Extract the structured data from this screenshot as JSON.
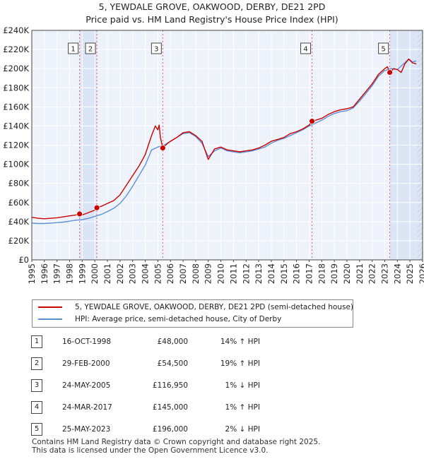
{
  "title_line1": "5, YEWDALE GROVE, OAKWOOD, DERBY, DE21 2PD",
  "title_line2": "Price paid vs. HM Land Registry's House Price Index (HPI)",
  "chart_data": {
    "type": "line",
    "xlim": [
      1995,
      2026
    ],
    "ylim": [
      0,
      240000
    ],
    "x_ticks": [
      "1995",
      "1996",
      "1997",
      "1998",
      "1999",
      "2000",
      "2001",
      "2002",
      "2003",
      "2004",
      "2005",
      "2006",
      "2007",
      "2008",
      "2009",
      "2010",
      "2011",
      "2012",
      "2013",
      "2014",
      "2015",
      "2016",
      "2017",
      "2018",
      "2019",
      "2020",
      "2021",
      "2022",
      "2023",
      "2024",
      "2025",
      "2026"
    ],
    "y_ticks": [
      {
        "value": 0,
        "label": "£0"
      },
      {
        "value": 20000,
        "label": "£20K"
      },
      {
        "value": 40000,
        "label": "£40K"
      },
      {
        "value": 60000,
        "label": "£60K"
      },
      {
        "value": 80000,
        "label": "£80K"
      },
      {
        "value": 100000,
        "label": "£100K"
      },
      {
        "value": 120000,
        "label": "£120K"
      },
      {
        "value": 140000,
        "label": "£140K"
      },
      {
        "value": 160000,
        "label": "£160K"
      },
      {
        "value": 180000,
        "label": "£180K"
      },
      {
        "value": 200000,
        "label": "£200K"
      },
      {
        "value": 220000,
        "label": "£220K"
      },
      {
        "value": 240000,
        "label": "£240K"
      }
    ],
    "grid": true,
    "shaded_ranges": [
      [
        1998.79,
        2000.16
      ],
      [
        2023.4,
        2026
      ]
    ],
    "hatched_from": 2025.6,
    "series": [
      {
        "name": "5, YEWDALE GROVE, OAKWOOD, DERBY, DE21 2PD (semi-detached house)",
        "color": "#cc0000",
        "points": [
          [
            1995,
            44500
          ],
          [
            1995.5,
            43500
          ],
          [
            1996,
            43000
          ],
          [
            1996.5,
            43500
          ],
          [
            1997,
            44000
          ],
          [
            1997.5,
            45000
          ],
          [
            1998,
            46000
          ],
          [
            1998.5,
            47000
          ],
          [
            1998.79,
            48000
          ],
          [
            1999,
            47000
          ],
          [
            1999.5,
            49500
          ],
          [
            2000,
            52000
          ],
          [
            2000.16,
            54500
          ],
          [
            2000.5,
            56000
          ],
          [
            2001,
            59000
          ],
          [
            2001.5,
            62000
          ],
          [
            2002,
            68000
          ],
          [
            2002.5,
            78000
          ],
          [
            2003,
            88000
          ],
          [
            2003.5,
            98000
          ],
          [
            2004,
            110000
          ],
          [
            2004.5,
            130000
          ],
          [
            2004.8,
            140000
          ],
          [
            2005,
            136000
          ],
          [
            2005.1,
            141000
          ],
          [
            2005.2,
            128000
          ],
          [
            2005.39,
            116950
          ],
          [
            2005.7,
            121000
          ],
          [
            2006,
            124000
          ],
          [
            2006.5,
            128000
          ],
          [
            2007,
            133000
          ],
          [
            2007.5,
            134000
          ],
          [
            2008,
            130000
          ],
          [
            2008.5,
            124000
          ],
          [
            2009,
            105000
          ],
          [
            2009.5,
            116000
          ],
          [
            2010,
            118000
          ],
          [
            2010.5,
            115000
          ],
          [
            2011,
            114000
          ],
          [
            2011.5,
            113000
          ],
          [
            2012,
            114000
          ],
          [
            2012.5,
            115000
          ],
          [
            2013,
            117000
          ],
          [
            2013.5,
            120000
          ],
          [
            2014,
            124000
          ],
          [
            2014.5,
            126000
          ],
          [
            2015,
            128000
          ],
          [
            2015.5,
            132000
          ],
          [
            2016,
            134000
          ],
          [
            2016.5,
            137000
          ],
          [
            2017,
            141000
          ],
          [
            2017.23,
            145000
          ],
          [
            2017.5,
            146000
          ],
          [
            2018,
            148000
          ],
          [
            2018.5,
            152000
          ],
          [
            2019,
            155000
          ],
          [
            2019.5,
            157000
          ],
          [
            2020,
            158000
          ],
          [
            2020.5,
            160000
          ],
          [
            2021,
            168000
          ],
          [
            2021.5,
            176000
          ],
          [
            2022,
            184000
          ],
          [
            2022.5,
            194000
          ],
          [
            2023,
            200000
          ],
          [
            2023.2,
            202000
          ],
          [
            2023.4,
            196000
          ],
          [
            2023.7,
            200000
          ],
          [
            2024,
            199000
          ],
          [
            2024.3,
            196000
          ],
          [
            2024.6,
            205000
          ],
          [
            2024.9,
            210000
          ],
          [
            2025.2,
            206000
          ],
          [
            2025.5,
            205000
          ]
        ]
      },
      {
        "name": "HPI: Average price, semi-detached house, City of Derby",
        "color": "#5b8fd6",
        "points": [
          [
            1995,
            38500
          ],
          [
            1995.5,
            38000
          ],
          [
            1996,
            38000
          ],
          [
            1996.5,
            38500
          ],
          [
            1997,
            39000
          ],
          [
            1997.5,
            39500
          ],
          [
            1998,
            40500
          ],
          [
            1998.5,
            41500
          ],
          [
            1999,
            42000
          ],
          [
            1999.5,
            43500
          ],
          [
            2000,
            45500
          ],
          [
            2000.5,
            47500
          ],
          [
            2001,
            50500
          ],
          [
            2001.5,
            54000
          ],
          [
            2002,
            59000
          ],
          [
            2002.5,
            67000
          ],
          [
            2003,
            77000
          ],
          [
            2003.5,
            88000
          ],
          [
            2004,
            99000
          ],
          [
            2004.5,
            115000
          ],
          [
            2005,
            118000
          ],
          [
            2005.5,
            120000
          ],
          [
            2006,
            124000
          ],
          [
            2006.5,
            128000
          ],
          [
            2007,
            132000
          ],
          [
            2007.5,
            133000
          ],
          [
            2008,
            129000
          ],
          [
            2008.5,
            122000
          ],
          [
            2009,
            108000
          ],
          [
            2009.5,
            114000
          ],
          [
            2010,
            117000
          ],
          [
            2010.5,
            114000
          ],
          [
            2011,
            113000
          ],
          [
            2011.5,
            112000
          ],
          [
            2012,
            113000
          ],
          [
            2012.5,
            114000
          ],
          [
            2013,
            116000
          ],
          [
            2013.5,
            118000
          ],
          [
            2014,
            122000
          ],
          [
            2014.5,
            125000
          ],
          [
            2015,
            127000
          ],
          [
            2015.5,
            130000
          ],
          [
            2016,
            133000
          ],
          [
            2016.5,
            136000
          ],
          [
            2017,
            140000
          ],
          [
            2017.5,
            143000
          ],
          [
            2018,
            146000
          ],
          [
            2018.5,
            150000
          ],
          [
            2019,
            153000
          ],
          [
            2019.5,
            155000
          ],
          [
            2020,
            156000
          ],
          [
            2020.5,
            159000
          ],
          [
            2021,
            166000
          ],
          [
            2021.5,
            174000
          ],
          [
            2022,
            182000
          ],
          [
            2022.5,
            192000
          ],
          [
            2023,
            198000
          ],
          [
            2023.5,
            200000
          ],
          [
            2024,
            199000
          ],
          [
            2024.5,
            205000
          ],
          [
            2024.9,
            210000
          ],
          [
            2025.2,
            207000
          ],
          [
            2025.5,
            208000
          ]
        ]
      }
    ],
    "sales": [
      {
        "label": "1",
        "x": 1998.79,
        "value": 48000
      },
      {
        "label": "2",
        "x": 2000.16,
        "value": 54500
      },
      {
        "label": "3",
        "x": 2005.39,
        "value": 116950
      },
      {
        "label": "4",
        "x": 2017.23,
        "value": 145000
      },
      {
        "label": "5",
        "x": 2023.4,
        "value": 196000
      }
    ]
  },
  "legend": {
    "property_label": "5, YEWDALE GROVE, OAKWOOD, DERBY, DE21 2PD (semi-detached house)",
    "hpi_label": "HPI: Average price, semi-detached house, City of Derby",
    "property_color": "#cc0000",
    "hpi_color": "#5b8fd6"
  },
  "sales_table": [
    {
      "num": "1",
      "date": "16-OCT-1998",
      "price": "£48,000",
      "hpi": "14% ↑ HPI"
    },
    {
      "num": "2",
      "date": "29-FEB-2000",
      "price": "£54,500",
      "hpi": "19% ↑ HPI"
    },
    {
      "num": "3",
      "date": "24-MAY-2005",
      "price": "£116,950",
      "hpi": "1% ↓ HPI"
    },
    {
      "num": "4",
      "date": "24-MAR-2017",
      "price": "£145,000",
      "hpi": "1% ↑ HPI"
    },
    {
      "num": "5",
      "date": "25-MAY-2023",
      "price": "£196,000",
      "hpi": "2% ↓ HPI"
    }
  ],
  "footer_line1": "Contains HM Land Registry data © Crown copyright and database right 2025.",
  "footer_line2": "This data is licensed under the Open Government Licence v3.0."
}
